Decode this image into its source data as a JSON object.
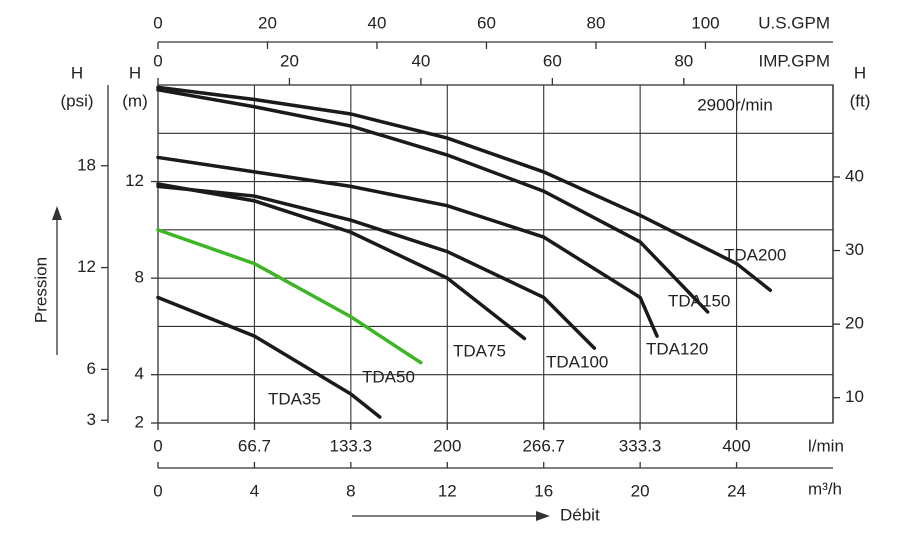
{
  "chart_data": {
    "type": "line",
    "subtitle": "2900r/min",
    "xlabel": "Débit",
    "ylabel": "Pression",
    "xunit": "m³/h",
    "ytitle": "H",
    "yunit": "(m)",
    "xlim": [
      0,
      28
    ],
    "xticks": [
      0,
      4,
      8,
      12,
      16,
      20,
      24
    ],
    "ylim": [
      2,
      16
    ],
    "yticks": [
      2,
      4,
      8,
      12
    ],
    "ygrid": [
      4,
      6,
      8,
      10,
      12,
      14
    ],
    "grid": true,
    "x2_axes": [
      {
        "label": "U.S.GPM",
        "lim": [
          0,
          123.3
        ],
        "ticks": [
          0,
          20,
          40,
          60,
          80,
          100
        ]
      },
      {
        "label": "IMP.GPM",
        "lim": [
          0,
          102.7
        ],
        "ticks": [
          0,
          20,
          40,
          60,
          80
        ]
      },
      {
        "label": "l/min",
        "lim": [
          0,
          466.7
        ],
        "ticks": [
          0,
          66.7,
          133.3,
          200,
          266.7,
          333.3,
          400
        ]
      }
    ],
    "y2_axes": [
      {
        "title": "H",
        "label": "(psi)",
        "lim": [
          2.84,
          22.76
        ],
        "ticks": [
          3,
          6,
          12,
          18
        ]
      },
      {
        "title": "H",
        "label": "(ft)",
        "lim": [
          6.56,
          52.5
        ],
        "ticks": [
          10,
          20,
          30,
          40
        ]
      }
    ],
    "series": [
      {
        "name": "TDA35",
        "color": "#1a1a1a",
        "x": [
          0,
          4,
          8,
          9.2
        ],
        "values": [
          7.2,
          5.6,
          3.2,
          2.25
        ]
      },
      {
        "name": "TDA50",
        "color": "#3db525",
        "x": [
          0,
          4,
          8,
          10.9
        ],
        "values": [
          10,
          8.6,
          6.4,
          4.5
        ]
      },
      {
        "name": "TDA75",
        "color": "#1a1a1a",
        "x": [
          0,
          4,
          8,
          12,
          15.2
        ],
        "values": [
          11.9,
          11.2,
          9.9,
          8,
          5.5
        ]
      },
      {
        "name": "TDA100",
        "color": "#1a1a1a",
        "x": [
          0,
          4,
          8,
          12,
          16,
          18.1
        ],
        "values": [
          11.8,
          11.4,
          10.4,
          9.1,
          7.2,
          5.1
        ]
      },
      {
        "name": "TDA120",
        "color": "#1a1a1a",
        "x": [
          0,
          4,
          8,
          12,
          16,
          20,
          20.7
        ],
        "values": [
          13,
          12.4,
          11.8,
          11,
          9.7,
          7.2,
          5.6
        ]
      },
      {
        "name": "TDA150",
        "color": "#1a1a1a",
        "x": [
          0,
          4,
          8,
          12,
          16,
          20,
          22.8
        ],
        "values": [
          15.8,
          15.1,
          14.3,
          13.1,
          11.6,
          9.5,
          6.6
        ]
      },
      {
        "name": "TDA200",
        "color": "#1a1a1a",
        "x": [
          0,
          4,
          8,
          12,
          16,
          20,
          24,
          25.4
        ],
        "values": [
          15.9,
          15.4,
          14.8,
          13.8,
          12.4,
          10.6,
          8.6,
          7.5
        ]
      }
    ]
  }
}
